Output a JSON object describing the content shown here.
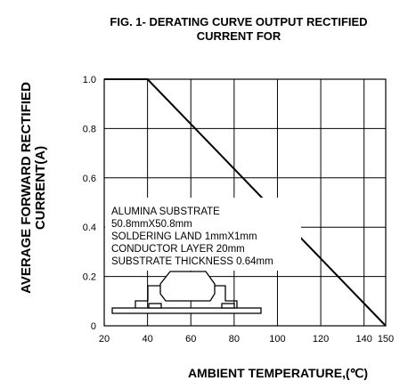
{
  "chart_data": {
    "type": "line",
    "title_lines": [
      "FIG. 1- DERATING CURVE OUTPUT RECTIFIED",
      "CURRENT FOR"
    ],
    "xlabel": "AMBIENT TEMPERATURE,(℃)",
    "ylabel_lines": [
      "AVERAGE FORWARD RECTIFIED",
      "CURRENT(A)"
    ],
    "xlim": [
      20,
      150
    ],
    "ylim": [
      0,
      1.0
    ],
    "x_ticks": [
      {
        "value": 20,
        "label": "20"
      },
      {
        "value": 40,
        "label": "40"
      },
      {
        "value": 60,
        "label": "60"
      },
      {
        "value": 80,
        "label": "80"
      },
      {
        "value": 100,
        "label": "100"
      },
      {
        "value": 120,
        "label": "120"
      },
      {
        "value": 140,
        "label": "140"
      },
      {
        "value": 150,
        "label": "150"
      }
    ],
    "y_ticks": [
      {
        "value": 0,
        "label": "0"
      },
      {
        "value": 0.2,
        "label": "0.2"
      },
      {
        "value": 0.4,
        "label": "0.4"
      },
      {
        "value": 0.6,
        "label": "0.6"
      },
      {
        "value": 0.8,
        "label": "0.8"
      },
      {
        "value": 1.0,
        "label": "1.0"
      }
    ],
    "grid_x": [
      40,
      60,
      80,
      100,
      120,
      140
    ],
    "grid_y": [
      0.2,
      0.4,
      0.6,
      0.8
    ],
    "series": [
      {
        "x": [
          20,
          40,
          150
        ],
        "y": [
          1.0,
          1.0,
          0.0
        ]
      }
    ],
    "annotation_lines": [
      "ALUMINA SUBSTRATE",
      "50.8mmX50.8mm",
      "SOLDERING LAND 1mmX1mm",
      "CONDUCTOR LAYER 20mm",
      "SUBSTRATE THICKNESS 0.64mm"
    ],
    "grid": true
  }
}
